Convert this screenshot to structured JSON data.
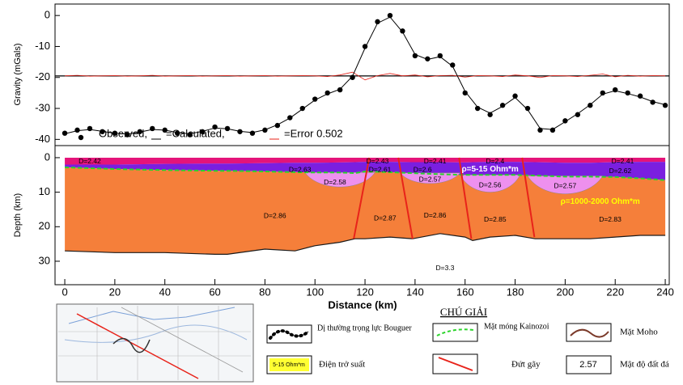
{
  "chart_data": [
    {
      "type": "line",
      "y_label": "Gravity (mGals)",
      "x": [
        0,
        5,
        10,
        15,
        20,
        25,
        30,
        35,
        40,
        45,
        50,
        55,
        60,
        65,
        70,
        75,
        80,
        85,
        90,
        95,
        100,
        105,
        110,
        115,
        120,
        125,
        130,
        135,
        140,
        145,
        150,
        155,
        160,
        165,
        170,
        175,
        180,
        185,
        190,
        195,
        200,
        205,
        210,
        215,
        220,
        225,
        230,
        235,
        240
      ],
      "series": [
        {
          "name": "Observed,",
          "color": "#000000",
          "values": [
            -38,
            -37,
            -36.5,
            -37.5,
            -38,
            -38.5,
            -37.5,
            -36.5,
            -37,
            -38,
            -38.5,
            -37.5,
            -36,
            -36.5,
            -37.5,
            -38,
            -37,
            -35.5,
            -33,
            -30,
            -27,
            -25,
            -24,
            -20,
            -10,
            -2,
            0,
            -5,
            -13,
            -14,
            -13,
            -16,
            -25,
            -30,
            -32,
            -29,
            -26,
            -30,
            -37,
            -37,
            -34,
            -32,
            -29,
            -25,
            -24,
            -25,
            -26,
            -28,
            -29
          ]
        },
        {
          "name": "=Calculated,",
          "color": "#000000",
          "values": [
            -38.2,
            -37.2,
            -36.8,
            -37.4,
            -38,
            -38.3,
            -37.6,
            -36.8,
            -37,
            -37.8,
            -38.2,
            -37.4,
            -36.3,
            -36.6,
            -37.4,
            -37.8,
            -36.9,
            -35.3,
            -33.1,
            -30.2,
            -27.3,
            -25.3,
            -23.8,
            -19.6,
            -10.5,
            -2.5,
            -0.5,
            -5.3,
            -12.6,
            -14.2,
            -13.3,
            -16.4,
            -24.5,
            -29.6,
            -31.5,
            -29.3,
            -26.5,
            -30.4,
            -36.5,
            -36.8,
            -34.3,
            -31.7,
            -28.8,
            -25.4,
            -24.3,
            -25.2,
            -26.3,
            -27.8,
            -28.8
          ]
        },
        {
          "name": "=Error 0.502",
          "color": "#e8231a",
          "values": [
            -19.5,
            -19.3,
            -19.6,
            -19.5,
            -19.4,
            -19.6,
            -19.5,
            -19.3,
            -19.6,
            -19.5,
            -19.4,
            -19.6,
            -19.5,
            -19.4,
            -19.6,
            -19.5,
            -19.4,
            -19.6,
            -19.5,
            -19.4,
            -19.5,
            -19.7,
            -19.2,
            -18.3,
            -20.8,
            -19.4,
            -18.7,
            -19.5,
            -19.2,
            -19.8,
            -19.4,
            -19.3,
            -19.9,
            -19.4,
            -19.5,
            -19.7,
            -19.2,
            -19.5,
            -20,
            -19.4,
            -19.5,
            -19.7,
            -19.3,
            -18.9,
            -19.8,
            -19.3,
            -19.6,
            -19.4,
            -19.5
          ]
        }
      ],
      "hline": -19.5,
      "xlim": [
        -3.9,
        241.6
      ],
      "ylim": [
        -42,
        3.7
      ],
      "yticks": [
        0,
        -10,
        -20,
        -30,
        -40
      ]
    },
    {
      "type": "section",
      "y_label": "Depth (km)",
      "x_label": "Distance (km)",
      "x": [
        0,
        20,
        40,
        60,
        65,
        80,
        92,
        100,
        110,
        116,
        120,
        130,
        139,
        150,
        160,
        163,
        170,
        180,
        188,
        200,
        210,
        220,
        230,
        240
      ],
      "layers": [
        {
          "color": "#e4147a",
          "base": [
            2,
            2,
            1.8,
            1.7,
            1.7,
            1.6,
            1.5,
            1.5,
            1.4,
            1.3,
            1.2,
            1.2,
            1.3,
            1.3,
            1.4,
            1.3,
            1.2,
            1.2,
            1.3,
            1.5,
            1.5,
            1.3,
            1.2,
            1.2
          ]
        },
        {
          "color": "#7a1fe0",
          "base": [
            2.8,
            3.3,
            3.6,
            3.8,
            3.8,
            4,
            4.2,
            4.3,
            4.3,
            4.5,
            4,
            4.2,
            4.5,
            4.8,
            5,
            5,
            5,
            5,
            5.2,
            5.5,
            5.5,
            5.6,
            6,
            6.5
          ]
        },
        {
          "color": "#f57f3a",
          "base": [
            27,
            27.5,
            27.5,
            28,
            28,
            26.5,
            27,
            25.5,
            24.5,
            23.5,
            23.5,
            23,
            23.5,
            22,
            23,
            24,
            23,
            22.5,
            23.5,
            23.5,
            23.5,
            23,
            22.5,
            22.5
          ]
        }
      ],
      "basins": [
        {
          "x": [
            96,
            124
          ],
          "top": 4.3,
          "depth": 8.5,
          "color": "#ee90ee"
        },
        {
          "x": [
            134,
            158
          ],
          "top": 4.4,
          "depth": 7.5,
          "color": "#ee90ee"
        },
        {
          "x": [
            158,
            182
          ],
          "top": 5,
          "depth": 10,
          "color": "#ee90ee"
        },
        {
          "x": [
            185,
            215
          ],
          "top": 5.3,
          "depth": 10.5,
          "color": "#ee90ee"
        }
      ],
      "faults": [
        {
          "x": [
            121.7,
            115.5
          ],
          "depth": [
            0,
            23.5
          ]
        },
        {
          "x": [
            133.3,
            139
          ],
          "depth": [
            0,
            23.5
          ]
        },
        {
          "x": [
            157.6,
            162.5
          ],
          "depth": [
            0,
            23.5
          ]
        },
        {
          "x": [
            182.8,
            187.7
          ],
          "depth": [
            0,
            23
          ]
        }
      ],
      "annotations": [
        {
          "text": "D=2.42",
          "x": 10,
          "y": 1.1
        },
        {
          "text": "D=2.43",
          "x": 125,
          "y": 1.1
        },
        {
          "text": "D=2.41",
          "x": 148,
          "y": 1.1
        },
        {
          "text": "D=2.4",
          "x": 172,
          "y": 1.1
        },
        {
          "text": "D=2.41",
          "x": 223,
          "y": 1.1
        },
        {
          "text": "D=2.63",
          "x": 94,
          "y": 3.6
        },
        {
          "text": "D=2.61",
          "x": 126,
          "y": 3.6
        },
        {
          "text": "D=2.6",
          "x": 143,
          "y": 3.6
        },
        {
          "text": "D=2.62",
          "x": 222,
          "y": 3.9
        },
        {
          "text": "D=2.58",
          "x": 108,
          "y": 7.2
        },
        {
          "text": "D=2.57",
          "x": 146,
          "y": 6.4
        },
        {
          "text": "D=2.56",
          "x": 170,
          "y": 8
        },
        {
          "text": "D=2.57",
          "x": 200,
          "y": 8.3
        },
        {
          "text": "D=2.86",
          "x": 84,
          "y": 17
        },
        {
          "text": "D=2.87",
          "x": 128,
          "y": 17.7
        },
        {
          "text": "D=2.86",
          "x": 148,
          "y": 16.8
        },
        {
          "text": "D=2.85",
          "x": 172,
          "y": 18
        },
        {
          "text": "D=2.83",
          "x": 218,
          "y": 18
        },
        {
          "text": "D=3.3",
          "x": 152,
          "y": 32
        },
        {
          "text": "ρ=5-15 Ohm*m",
          "x": 170,
          "y": 3.4,
          "color": "#ffffff"
        },
        {
          "text": "ρ=1000-2000 Ohm*m",
          "x": 214,
          "y": 12.7,
          "color": "#ffff00"
        }
      ],
      "kainozoi_color": "#2bd42b",
      "moho_color": "#1a1a1a",
      "fault_color": "#e8231a",
      "xlim": [
        -3.9,
        241.6
      ],
      "ylim": [
        -3.5,
        36.8
      ],
      "xticks": [
        0,
        20,
        40,
        60,
        80,
        100,
        120,
        140,
        160,
        180,
        200,
        220,
        240
      ],
      "yticks": [
        0,
        10,
        20,
        30
      ]
    }
  ],
  "legend": {
    "title": "CHÚ GIẢI",
    "items": [
      "Dị thường trọng lực Bouguer",
      "Mặt móng Kainozoi",
      "Mặt Moho",
      "Điện trở suất",
      "Đứt gãy",
      "Mật độ đất đá"
    ],
    "resistivity_sample": "5-15 Ohm*m",
    "density_sample": "2.57"
  }
}
